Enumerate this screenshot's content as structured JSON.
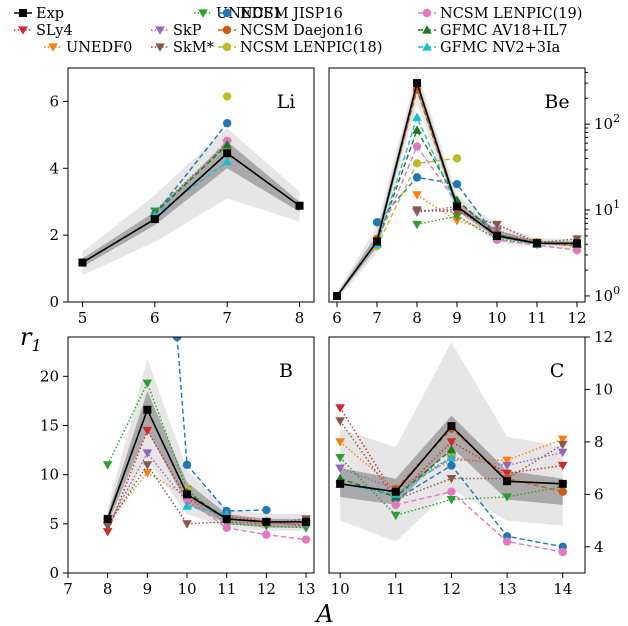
{
  "colors": {
    "band_outer": "#e6e6e6",
    "band_inner": "#a9a9a9"
  },
  "chart_data": {
    "type": "line",
    "xlabel": "A",
    "ylabel": "r_1",
    "legend_position": "top",
    "series_styles": [
      {
        "name": "Exp",
        "color": "#000000",
        "marker": "s",
        "dash": "solid"
      },
      {
        "name": "SLy4",
        "color": "#d62728",
        "marker": "v",
        "dash": "dotted"
      },
      {
        "name": "UNEDF0",
        "color": "#ff7f0e",
        "marker": "v",
        "dash": "dotted"
      },
      {
        "name": "UNEDF1",
        "color": "#2ca02c",
        "marker": "v",
        "dash": "dotted"
      },
      {
        "name": "SkP",
        "color": "#9467bd",
        "marker": "v",
        "dash": "dotted"
      },
      {
        "name": "SkM*",
        "color": "#8c564b",
        "marker": "v",
        "dash": "dotted"
      },
      {
        "name": "NCSM JISP16",
        "color": "#1f77b4",
        "marker": "o",
        "dash": "dashed"
      },
      {
        "name": "NCSM Daejon16",
        "color": "#d45a12",
        "marker": "o",
        "dash": "dashed"
      },
      {
        "name": "NCSM LENPIC(18)",
        "color": "#bcbd22",
        "marker": "o",
        "dash": "dashed"
      },
      {
        "name": "NCSM LENPIC(19)",
        "color": "#e377c2",
        "marker": "o",
        "dash": "dashed"
      },
      {
        "name": "GFMC AV18+IL7",
        "color": "#1a7a1a",
        "marker": "^",
        "dash": "dashed"
      },
      {
        "name": "GFMC NV2+3Ia",
        "color": "#17becf",
        "marker": "^",
        "dash": "dashed"
      }
    ],
    "panels": [
      {
        "label": "Li",
        "scale": "linear",
        "xlim": [
          4.8,
          8.2
        ],
        "ylim": [
          0,
          7
        ],
        "xticks": [
          "5",
          "6",
          "7",
          "8"
        ],
        "yticks": [
          "0",
          "2",
          "4",
          "6"
        ],
        "band_outer": {
          "x": [
            5,
            6,
            7,
            8
          ],
          "lo": [
            0.8,
            1.8,
            3.1,
            2.4
          ],
          "hi": [
            1.5,
            3.2,
            5.2,
            3.3
          ]
        },
        "band_inner": {
          "x": [
            5,
            6,
            7,
            8
          ],
          "lo": [
            1.05,
            2.3,
            4.0,
            2.7
          ],
          "hi": [
            1.3,
            2.7,
            4.8,
            3.0
          ]
        },
        "series": [
          {
            "name": "Exp",
            "x": [
              5,
              6,
              7,
              8
            ],
            "y": [
              1.18,
              2.48,
              4.45,
              2.88
            ]
          },
          {
            "name": "UNEDF1",
            "x": [
              6,
              7
            ],
            "y": [
              2.72,
              4.75
            ]
          },
          {
            "name": "NCSM JISP16",
            "x": [
              6,
              7
            ],
            "y": [
              2.62,
              5.35
            ]
          },
          {
            "name": "NCSM LENPIC(18)",
            "x": [
              7
            ],
            "y": [
              6.15
            ]
          },
          {
            "name": "NCSM LENPIC(19)",
            "x": [
              6,
              7
            ],
            "y": [
              2.58,
              4.82
            ]
          },
          {
            "name": "GFMC AV18+IL7",
            "x": [
              6,
              7
            ],
            "y": [
              2.65,
              4.7
            ]
          },
          {
            "name": "GFMC NV2+3Ia",
            "x": [
              6,
              7
            ],
            "y": [
              2.6,
              4.2
            ]
          }
        ]
      },
      {
        "label": "Be",
        "scale": "log",
        "xlim": [
          5.8,
          12.2
        ],
        "ylim": [
          0.85,
          450
        ],
        "xticks": [
          "6",
          "7",
          "8",
          "9",
          "10",
          "11",
          "12"
        ],
        "yticks": [
          "10^0",
          "10^1",
          "10^2"
        ],
        "band_outer": {
          "x": [
            6,
            7,
            8,
            9,
            10,
            11,
            12
          ],
          "lo": [
            0.9,
            3.2,
            180,
            8.5,
            4.2,
            3.7,
            3.5
          ],
          "hi": [
            1.1,
            6.5,
            420,
            15,
            6.8,
            4.7,
            4.6
          ]
        },
        "band_inner": {
          "x": [
            6,
            7,
            8,
            9,
            10,
            11,
            12
          ],
          "lo": [
            0.95,
            3.7,
            240,
            9.8,
            4.7,
            4.0,
            3.8
          ],
          "hi": [
            1.05,
            5.2,
            340,
            12.5,
            5.8,
            4.4,
            4.3
          ]
        },
        "series": [
          {
            "name": "Exp",
            "x": [
              6,
              7,
              8,
              9,
              10,
              11,
              12
            ],
            "y": [
              1.0,
              4.3,
              300,
              11,
              5.0,
              4.1,
              4.1
            ]
          },
          {
            "name": "SLy4",
            "x": [
              8,
              9,
              10,
              11
            ],
            "y": [
              9.5,
              10.2,
              5.1,
              4.0
            ]
          },
          {
            "name": "UNEDF0",
            "x": [
              8,
              9,
              10
            ],
            "y": [
              15,
              7.5,
              5.6
            ]
          },
          {
            "name": "UNEDF1",
            "x": [
              8,
              9,
              10,
              11
            ],
            "y": [
              6.8,
              8.5,
              4.6,
              4.0
            ]
          },
          {
            "name": "SkP",
            "x": [
              8,
              9,
              10,
              11
            ],
            "y": [
              9.5,
              11,
              5.8,
              4.1
            ]
          },
          {
            "name": "SkM*",
            "x": [
              8,
              9,
              10,
              11,
              12
            ],
            "y": [
              10,
              9.5,
              6.8,
              4.2,
              4.6
            ]
          },
          {
            "name": "NCSM JISP16",
            "x": [
              7,
              8,
              9,
              10
            ],
            "y": [
              7.2,
              24,
              20,
              4.8
            ]
          },
          {
            "name": "NCSM Daejon16",
            "x": [
              7,
              8,
              9,
              10,
              11,
              12
            ],
            "y": [
              4.6,
              250,
              10.5,
              5.2,
              4.2,
              3.8
            ]
          },
          {
            "name": "NCSM LENPIC(18)",
            "x": [
              7,
              8,
              9
            ],
            "y": [
              3.8,
              35,
              40
            ]
          },
          {
            "name": "NCSM LENPIC(19)",
            "x": [
              7,
              8,
              9,
              10,
              12
            ],
            "y": [
              4.2,
              55,
              12,
              4.5,
              3.4
            ]
          },
          {
            "name": "GFMC AV18+IL7",
            "x": [
              7,
              8,
              9,
              10,
              11,
              12
            ],
            "y": [
              4.2,
              85,
              13,
              5.2,
              4.1,
              4.0
            ]
          },
          {
            "name": "GFMC NV2+3Ia",
            "x": [
              7,
              8,
              9,
              10,
              11
            ],
            "y": [
              4.0,
              120,
              11,
              4.9,
              4.0
            ]
          }
        ]
      },
      {
        "label": "B",
        "scale": "linear",
        "xlim": [
          7,
          13.2
        ],
        "ylim": [
          0,
          24
        ],
        "xticks": [
          "7",
          "8",
          "9",
          "10",
          "11",
          "12",
          "13"
        ],
        "yticks": [
          "0",
          "5",
          "10",
          "15",
          "20"
        ],
        "band_outer": {
          "x": [
            8,
            9,
            10,
            11,
            12,
            13
          ],
          "lo": [
            4.5,
            11.5,
            6.0,
            4.6,
            4.3,
            4.3
          ],
          "hi": [
            6.5,
            21.8,
            10.5,
            6.5,
            6.0,
            6.0
          ]
        },
        "band_inner": {
          "x": [
            8,
            9,
            10,
            11,
            12,
            13
          ],
          "lo": [
            5.0,
            14.5,
            7.0,
            5.0,
            4.6,
            4.6
          ],
          "hi": [
            6.0,
            18.5,
            9.2,
            6.0,
            5.5,
            5.5
          ]
        },
        "series": [
          {
            "name": "Exp",
            "x": [
              8,
              9,
              10,
              11,
              12,
              13
            ],
            "y": [
              5.5,
              16.6,
              8.0,
              5.5,
              5.2,
              5.2
            ]
          },
          {
            "name": "SLy4",
            "x": [
              8,
              9,
              10,
              11,
              12,
              13
            ],
            "y": [
              4.2,
              14.5,
              7.5,
              5.8,
              5.2,
              4.8
            ]
          },
          {
            "name": "UNEDF0",
            "x": [
              8,
              9,
              10,
              11,
              12,
              13
            ],
            "y": [
              5.2,
              10.2,
              7.8,
              5.5,
              5.0,
              5.0
            ]
          },
          {
            "name": "UNEDF1",
            "x": [
              8,
              9,
              10,
              11,
              12,
              13
            ],
            "y": [
              11.0,
              19.3,
              8.5,
              5.0,
              4.8,
              4.6
            ]
          },
          {
            "name": "SkP",
            "x": [
              8,
              9,
              10,
              11,
              12,
              13
            ],
            "y": [
              4.8,
              12.2,
              7.2,
              5.6,
              5.1,
              5.0
            ]
          },
          {
            "name": "SkM*",
            "x": [
              8,
              9,
              10,
              11,
              12,
              13
            ],
            "y": [
              4.8,
              11.0,
              5.0,
              5.2,
              5.0,
              5.5
            ]
          },
          {
            "name": "NCSM JISP16",
            "x": [
              9.75,
              10,
              11,
              12
            ],
            "y": [
              24,
              11.0,
              6.3,
              6.4
            ]
          },
          {
            "name": "NCSM Daejon16",
            "x": [
              10,
              11,
              12
            ],
            "y": [
              8.0,
              5.5,
              5.2
            ]
          },
          {
            "name": "NCSM LENPIC(18)",
            "x": [
              10
            ],
            "y": [
              8.5
            ]
          },
          {
            "name": "NCSM LENPIC(19)",
            "x": [
              10,
              11,
              12,
              13
            ],
            "y": [
              7.5,
              4.6,
              3.9,
              3.4
            ]
          },
          {
            "name": "GFMC AV18+IL7",
            "x": [
              10,
              11
            ],
            "y": [
              8.2,
              5.5
            ]
          },
          {
            "name": "GFMC NV2+3Ia",
            "x": [
              10,
              11
            ],
            "y": [
              6.8,
              6.0
            ]
          }
        ]
      },
      {
        "label": "C",
        "scale": "linear",
        "xlim": [
          9.8,
          14.4
        ],
        "ylim": [
          3.0,
          12.0
        ],
        "xticks": [
          "10",
          "11",
          "12",
          "13",
          "14"
        ],
        "yticks": [
          "4",
          "6",
          "8",
          "10",
          "12"
        ],
        "band_outer": {
          "x": [
            10,
            11,
            12,
            13,
            14
          ],
          "lo": [
            5.0,
            4.2,
            6.2,
            5.0,
            4.8
          ],
          "hi": [
            8.5,
            7.8,
            11.8,
            8.2,
            7.8
          ]
        },
        "band_inner": {
          "x": [
            10,
            11,
            12,
            13,
            14
          ],
          "lo": [
            5.9,
            5.6,
            7.8,
            5.8,
            5.6
          ],
          "hi": [
            7.0,
            6.6,
            9.0,
            6.9,
            6.6
          ]
        },
        "series": [
          {
            "name": "Exp",
            "x": [
              10,
              11,
              12,
              13,
              14
            ],
            "y": [
              6.4,
              6.1,
              8.6,
              6.5,
              6.4
            ]
          },
          {
            "name": "SLy4",
            "x": [
              10,
              11,
              12,
              13,
              14
            ],
            "y": [
              9.3,
              5.9,
              8.0,
              6.8,
              7.1
            ]
          },
          {
            "name": "UNEDF0",
            "x": [
              10,
              11,
              12,
              13,
              14
            ],
            "y": [
              8.0,
              6.2,
              7.3,
              7.3,
              8.1
            ]
          },
          {
            "name": "UNEDF1",
            "x": [
              10,
              11,
              12,
              13,
              14
            ],
            "y": [
              7.4,
              5.2,
              5.8,
              5.9,
              6.3
            ]
          },
          {
            "name": "SkP",
            "x": [
              10,
              11,
              12,
              13,
              14
            ],
            "y": [
              7.0,
              6.2,
              7.4,
              7.1,
              7.6
            ]
          },
          {
            "name": "SkM*",
            "x": [
              10,
              11,
              12,
              13,
              14
            ],
            "y": [
              8.8,
              5.8,
              6.6,
              6.6,
              7.9
            ]
          },
          {
            "name": "NCSM JISP16",
            "x": [
              11,
              12,
              13,
              14
            ],
            "y": [
              5.8,
              7.1,
              4.4,
              4.0
            ]
          },
          {
            "name": "NCSM Daejon16",
            "x": [
              11,
              12,
              13,
              14
            ],
            "y": [
              6.2,
              8.5,
              6.6,
              6.1
            ]
          },
          {
            "name": "NCSM LENPIC(18)",
            "x": [
              12
            ],
            "y": [
              7.6
            ]
          },
          {
            "name": "NCSM LENPIC(19)",
            "x": [
              11,
              12,
              13,
              14
            ],
            "y": [
              5.6,
              6.1,
              4.2,
              3.8
            ]
          },
          {
            "name": "GFMC AV18+IL7",
            "x": [
              10,
              11,
              12
            ],
            "y": [
              6.6,
              5.9,
              7.7
            ]
          },
          {
            "name": "GFMC NV2+3Ia",
            "x": [
              10,
              11,
              12
            ],
            "y": [
              6.4,
              6.0,
              7.4
            ]
          }
        ]
      }
    ]
  }
}
